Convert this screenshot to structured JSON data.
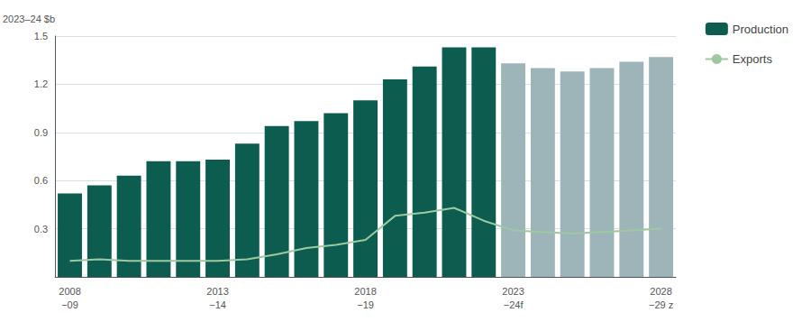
{
  "chart_data": {
    "type": "bar",
    "y_label": "2023–24 $b",
    "categories": [
      "2008\n−09",
      null,
      null,
      null,
      null,
      "2013\n−14",
      null,
      null,
      null,
      null,
      "2018\n−19",
      null,
      null,
      null,
      null,
      "2023\n−24f",
      null,
      null,
      null,
      null,
      "2028\n−29 z"
    ],
    "series": [
      {
        "name": "Production",
        "type": "bar",
        "color": "#0d5c50",
        "colors": [
          "#0d5c50",
          "#0d5c50",
          "#0d5c50",
          "#0d5c50",
          "#0d5c50",
          "#0d5c50",
          "#0d5c50",
          "#0d5c50",
          "#0d5c50",
          "#0d5c50",
          "#0d5c50",
          "#0d5c50",
          "#0d5c50",
          "#0d5c50",
          "#0d5c50",
          "#9db4b8",
          "#9db4b8",
          "#9db4b8",
          "#9db4b8",
          "#9db4b8",
          "#9db4b8"
        ],
        "values": [
          0.52,
          0.57,
          0.63,
          0.72,
          0.72,
          0.73,
          0.83,
          0.94,
          0.97,
          1.02,
          1.1,
          1.23,
          1.31,
          1.43,
          1.43,
          1.33,
          1.3,
          1.28,
          1.3,
          1.34,
          1.37
        ]
      },
      {
        "name": "Exports",
        "type": "line",
        "color": "#9ec9a0",
        "values": [
          0.1,
          0.11,
          0.1,
          0.1,
          0.1,
          0.1,
          0.11,
          0.14,
          0.18,
          0.2,
          0.23,
          0.38,
          0.4,
          0.43,
          0.35,
          0.29,
          0.28,
          0.27,
          0.28,
          0.29,
          0.3
        ]
      }
    ],
    "ylim": [
      0,
      1.5
    ],
    "yticks": [
      0.3,
      0.6,
      0.9,
      1.2,
      1.5
    ],
    "grid": true,
    "legend": "upper right"
  }
}
